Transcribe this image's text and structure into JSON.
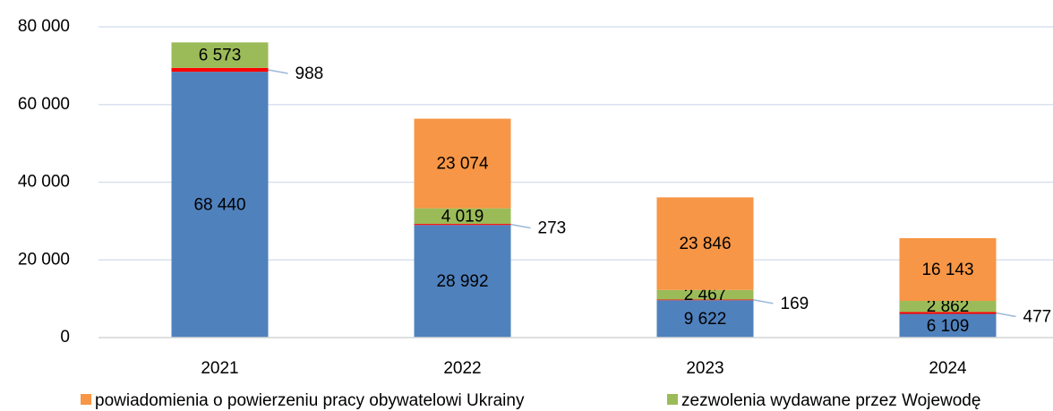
{
  "chart_data": {
    "type": "stacked_bar",
    "categories": [
      "2021",
      "2022",
      "2023",
      "2024"
    ],
    "series": [
      {
        "color": "#4f81bd",
        "values": [
          68440,
          28992,
          9622,
          6109
        ],
        "value_labels": [
          "68 440",
          "28 992",
          "9 622",
          "6 109"
        ]
      },
      {
        "color": "#ff0000",
        "values": [
          988,
          273,
          169,
          477
        ]
      },
      {
        "name": "zezwolenia wydawane przez Wojewodę",
        "color": "#9bbb59",
        "values": [
          6573,
          4019,
          2467,
          2862
        ],
        "value_labels": [
          "6 573",
          "4 019",
          "2 467",
          "2 862"
        ]
      },
      {
        "name": "powiadomienia o powierzeniu pracy obywatelowi Ukrainy",
        "color": "#f79646",
        "values": [
          null,
          23074,
          23846,
          16143
        ],
        "value_labels": [
          null,
          "23 074",
          "23 846",
          "16 143"
        ]
      }
    ],
    "ylim": [
      0,
      80000
    ],
    "yticks": [
      0,
      {
        "value": 20000,
        "label": "20 000"
      },
      {
        "value": 40000,
        "label": "40 000"
      },
      {
        "value": 60000,
        "label": "60 000"
      },
      {
        "value": 80000,
        "label": "80 000"
      }
    ],
    "grid": true
  }
}
